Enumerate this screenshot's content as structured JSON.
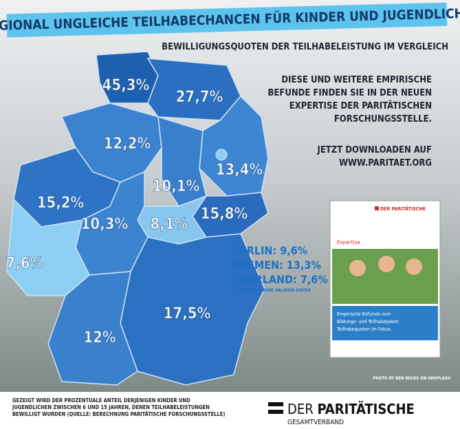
{
  "header": {
    "title": "REGIONAL UNGLEICHE TEILHABECHANCEN FÜR KINDER UND JUGENDLICHE",
    "subtitle": "BEWILLIGUNGSQUOTEN DER TEILHABELEISTUNG IM VERGLEICH"
  },
  "states": [
    {
      "label": "45,3%"
    },
    {
      "label": "27,7%"
    },
    {
      "label": "12,2%"
    },
    {
      "label": "13,4%"
    },
    {
      "label": "15,2%"
    },
    {
      "label": "10,1%"
    },
    {
      "label": "15,8%"
    },
    {
      "label": "8,1%"
    },
    {
      "label": "10,3%"
    },
    {
      "label": "7,6%"
    },
    {
      "label": "17,5%"
    },
    {
      "label": "12%"
    }
  ],
  "info": {
    "lines": [
      "DIESE UND WEITERE EMPIRISCHE",
      "BEFUNDE FINDEN SIE IN DER NEUEN",
      "EXPERTISE DER PARITÄTISCHEN",
      "FORSCHUNGSSTELLE."
    ],
    "download": [
      "JETZT DOWNLOADEN AUF",
      "WWW.PARITAET.ORG"
    ]
  },
  "city_states": [
    {
      "label": "BERLIN: 9,6%"
    },
    {
      "label": "BREMEN: 13,3%"
    },
    {
      "label": "SAARLAND: 7,6%"
    }
  ],
  "hamburg_note": "HAMBURG: KEINE VALIDEN DATEN",
  "brochure": {
    "brand": "DER PARITÄTISCHE",
    "kind": "Expertise",
    "title": [
      "Empirische Befunde zum",
      "Bildungs- und Teilhabepaket:",
      "Teilhabequoten im Fokus."
    ]
  },
  "photo_credit": "PHOTO BY BEN WICKS ON UNSPLASH",
  "footnote": [
    "GEZEIGT WIRD DER PROZENTUALE ANTEIL DERJENIGEN KINDER UND",
    "JUGENDLICHEN ZWISCHEN 6 UND 15 JAHREN, DENEN TEILHABELEISTUNGEN",
    "BEWILLIGT WURDEN (QUELLE: BERECHNUNG PARITÄTISCHE FORSCHUNGSSTELLE)"
  ],
  "logo": {
    "prefix": "DER",
    "name": "PARITÄTISCHE",
    "sub": "GESAMTVERBAND"
  }
}
